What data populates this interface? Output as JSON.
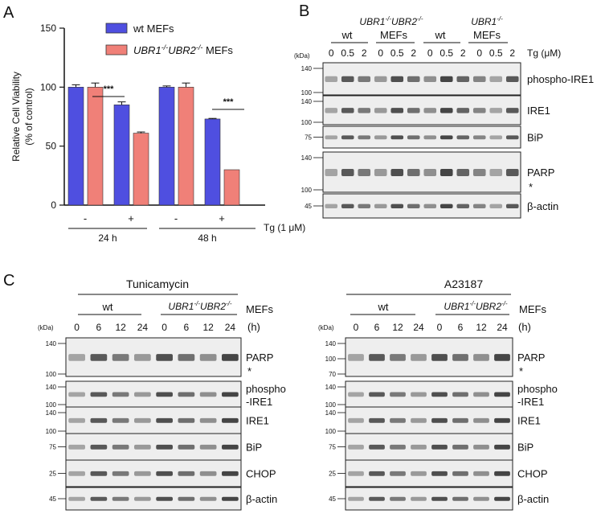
{
  "panels": {
    "A": {
      "letter": "A",
      "chart_data": {
        "type": "bar",
        "ylabel_line1": "Relative Cell Viability",
        "ylabel_line2": "(% of control)",
        "ylim": [
          0,
          150
        ],
        "yticks": [
          "0",
          "50",
          "100",
          "150"
        ],
        "categories": [
          "-",
          "+",
          "-",
          "+"
        ],
        "groups": [
          "24 h",
          "48 h"
        ],
        "treatment_label": "Tg (1 μM)",
        "legend_position": "top-right",
        "series": [
          {
            "name": "wt MEFs",
            "color": "#4f4fe0",
            "values": [
              100,
              85,
              100,
              73
            ],
            "errors": [
              2,
              2.5,
              1,
              0.5
            ]
          },
          {
            "name_prefix": "UBR1",
            "name_sup1": "-/-",
            "name_mid": "UBR2",
            "name_sup2": "-/-",
            "name_suffix": " MEFs",
            "color": "#f08078",
            "values": [
              100,
              61,
              100,
              30
            ],
            "errors": [
              3.5,
              1,
              3.5,
              0
            ]
          }
        ],
        "significance": [
          "***",
          "***"
        ]
      }
    },
    "B": {
      "letter": "B",
      "kda": "(kDa)",
      "groups": [
        {
          "label": "wt"
        },
        {
          "label_prefix": "UBR1",
          "sup1": "-/-",
          "label_mid": "UBR2",
          "sup2": "-/-",
          "label2": "MEFs"
        },
        {
          "label": "wt"
        },
        {
          "label_prefix": "UBR1",
          "sup1": "-/-",
          "label2": "MEFs"
        }
      ],
      "doses": [
        "0",
        "0.5",
        "2",
        "0",
        "0.5",
        "2",
        "0",
        "0.5",
        "2",
        "0",
        "0.5",
        "2"
      ],
      "dose_label": "Tg (μM)",
      "blots": [
        {
          "name": "phospho-IRE1",
          "markers": [
            "140",
            "100"
          ]
        },
        {
          "name": "IRE1",
          "markers": [
            "140",
            "100"
          ]
        },
        {
          "name": "BiP",
          "markers": [
            "75"
          ]
        },
        {
          "name": "PARP",
          "markers": [
            "140",
            "100"
          ],
          "star": "*"
        },
        {
          "name": "β-actin",
          "markers": [
            "45"
          ]
        }
      ]
    },
    "C": {
      "letter": "C",
      "kda": "(kDa)",
      "mefs_label": "MEFs",
      "hour_unit": "(h)",
      "group_wt": "wt",
      "group_ko_prefix": "UBR1",
      "group_ko_sup1": "-/-",
      "group_ko_mid": "UBR2",
      "group_ko_sup2": "-/-",
      "times": [
        "0",
        "6",
        "12",
        "24",
        "0",
        "6",
        "12",
        "24"
      ],
      "subpanels": [
        {
          "title": "Tunicamycin",
          "blots": [
            {
              "name": "PARP",
              "markers": [
                "140",
                "100"
              ],
              "star": "*"
            },
            {
              "name_line1": "phospho",
              "name_line2": "-IRE1",
              "markers": [
                "140",
                "100"
              ]
            },
            {
              "name": "IRE1",
              "markers": [
                "140",
                "100"
              ]
            },
            {
              "name": "BiP",
              "markers": [
                "75"
              ]
            },
            {
              "name": "CHOP",
              "markers": [
                "25"
              ]
            },
            {
              "name": "β-actin",
              "markers": [
                "45"
              ]
            }
          ]
        },
        {
          "title": "A23187",
          "blots": [
            {
              "name": "PARP",
              "markers": [
                "140",
                "100",
                "70"
              ],
              "star": "*"
            },
            {
              "name_line1": "phospho",
              "name_line2": "-IRE1",
              "markers": [
                "140",
                "100"
              ]
            },
            {
              "name": "IRE1",
              "markers": [
                "140",
                "100"
              ]
            },
            {
              "name": "BiP",
              "markers": [
                "75"
              ]
            },
            {
              "name": "CHOP",
              "markers": [
                "25"
              ]
            },
            {
              "name": "β-actin",
              "markers": [
                "45"
              ]
            }
          ]
        }
      ]
    }
  }
}
